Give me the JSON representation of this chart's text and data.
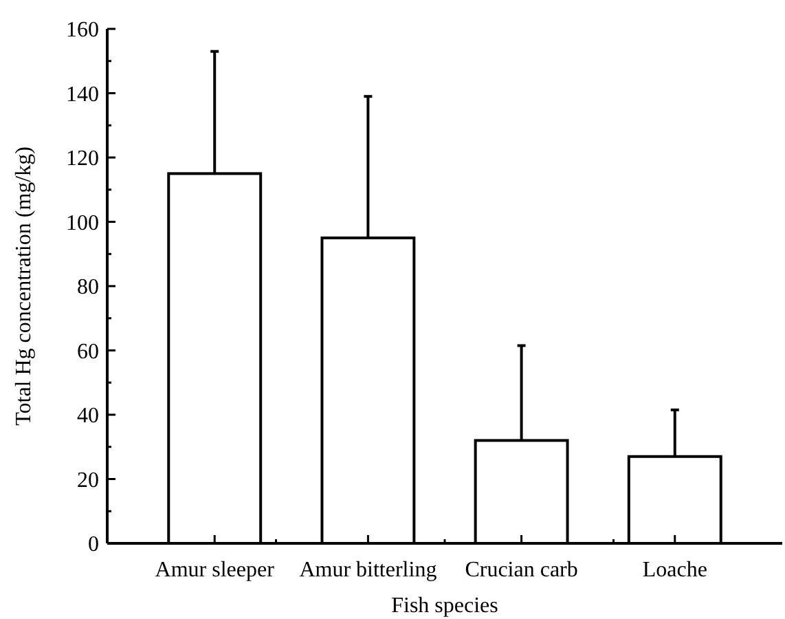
{
  "chart_data": {
    "type": "bar",
    "xlabel": "Fish species",
    "ylabel": "Total Hg concentration (mg/kg)",
    "categories": [
      "Amur sleeper",
      "Amur bitterling",
      "Crucian carb",
      "Loache"
    ],
    "values": [
      115,
      95,
      32,
      27
    ],
    "color": "#ffffff",
    "errors": [
      [
        115,
        153
      ],
      [
        95,
        139
      ],
      [
        32,
        61.5
      ],
      [
        27,
        41.5
      ]
    ],
    "ylim": [
      0,
      160
    ],
    "yticks": [
      0,
      20,
      40,
      60,
      80,
      100,
      120,
      140,
      160
    ],
    "grid": false
  }
}
